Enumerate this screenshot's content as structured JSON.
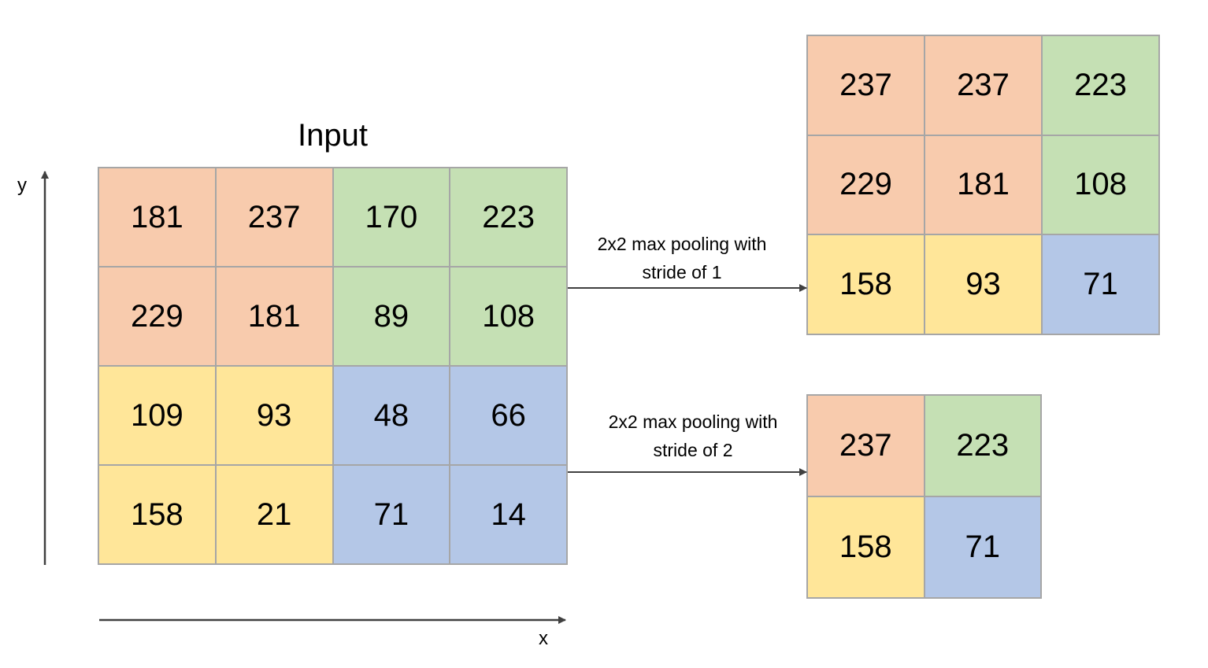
{
  "input": {
    "title": "Input",
    "rows": [
      [
        {
          "v": "181",
          "c": "orange"
        },
        {
          "v": "237",
          "c": "orange"
        },
        {
          "v": "170",
          "c": "green"
        },
        {
          "v": "223",
          "c": "green"
        }
      ],
      [
        {
          "v": "229",
          "c": "orange"
        },
        {
          "v": "181",
          "c": "orange"
        },
        {
          "v": "89",
          "c": "green"
        },
        {
          "v": "108",
          "c": "green"
        }
      ],
      [
        {
          "v": "109",
          "c": "yellow"
        },
        {
          "v": "93",
          "c": "yellow"
        },
        {
          "v": "48",
          "c": "blue"
        },
        {
          "v": "66",
          "c": "blue"
        }
      ],
      [
        {
          "v": "158",
          "c": "yellow"
        },
        {
          "v": "21",
          "c": "yellow"
        },
        {
          "v": "71",
          "c": "blue"
        },
        {
          "v": "14",
          "c": "blue"
        }
      ]
    ]
  },
  "op1": {
    "label_line1": "2x2 max pooling with",
    "label_line2": "stride of 1"
  },
  "op2": {
    "label_line1": "2x2 max pooling with",
    "label_line2": "stride of 2"
  },
  "output_stride1": {
    "rows": [
      [
        {
          "v": "237",
          "c": "orange"
        },
        {
          "v": "237",
          "c": "orange"
        },
        {
          "v": "223",
          "c": "green"
        }
      ],
      [
        {
          "v": "229",
          "c": "orange"
        },
        {
          "v": "181",
          "c": "orange"
        },
        {
          "v": "108",
          "c": "green"
        }
      ],
      [
        {
          "v": "158",
          "c": "yellow"
        },
        {
          "v": "93",
          "c": "yellow"
        },
        {
          "v": "71",
          "c": "blue"
        }
      ]
    ]
  },
  "output_stride2": {
    "rows": [
      [
        {
          "v": "237",
          "c": "orange"
        },
        {
          "v": "223",
          "c": "green"
        }
      ],
      [
        {
          "v": "158",
          "c": "yellow"
        },
        {
          "v": "71",
          "c": "blue"
        }
      ]
    ]
  },
  "axes": {
    "x_label": "x",
    "y_label": "y"
  },
  "colors": {
    "orange": "#f8cbad",
    "green": "#c5e0b4",
    "yellow": "#ffe699",
    "blue": "#b4c7e7",
    "grid_line": "#a6a6a6",
    "arrow": "#404040"
  }
}
